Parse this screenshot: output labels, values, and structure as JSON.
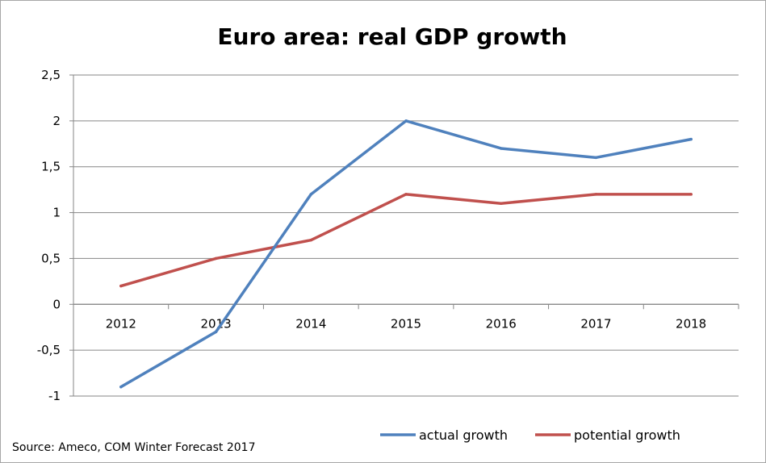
{
  "chart_data": {
    "type": "line",
    "title": "Euro area: real GDP growth",
    "categories": [
      "2012",
      "2013",
      "2014",
      "2015",
      "2016",
      "2017",
      "2018"
    ],
    "y_tick_labels": [
      "2,5",
      "2",
      "1,5",
      "1",
      "0,5",
      "0",
      "-0,5",
      "-1"
    ],
    "y_tick_values": [
      2.5,
      2,
      1.5,
      1,
      0.5,
      0,
      -0.5,
      -1
    ],
    "ylim": [
      -1,
      2.5
    ],
    "grid": true,
    "legend_position": "bottom-right",
    "series": [
      {
        "name": "actual growth",
        "color": "#4f81bd",
        "values": [
          -0.9,
          -0.3,
          1.2,
          2.0,
          1.7,
          1.6,
          1.8
        ]
      },
      {
        "name": "potential growth",
        "color": "#c0504d",
        "values": [
          0.2,
          0.5,
          0.7,
          1.2,
          1.1,
          1.2,
          1.2
        ]
      }
    ],
    "source": "Source: Ameco, COM Winter Forecast 2017"
  }
}
